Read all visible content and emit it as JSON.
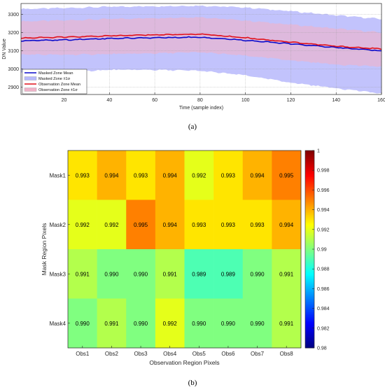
{
  "captions": {
    "a": "(a)",
    "b": "(b)"
  },
  "colors": {
    "masked_mean": "#0a0acb",
    "masked_band": "#b7b9fb",
    "obs_mean": "#e0101a",
    "obs_band": "#f0b3c8"
  },
  "chart_data": [
    {
      "type": "line",
      "title": "",
      "xlabel": "Time (sample index)",
      "ylabel": "DN Value",
      "xlim": [
        1,
        160
      ],
      "ylim": [
        2860,
        3360
      ],
      "xticks": [
        20,
        40,
        60,
        80,
        100,
        120,
        140,
        160
      ],
      "yticks": [
        2900,
        3000,
        3100,
        3200,
        3300
      ],
      "grid": true,
      "legend_position": "bottom-left",
      "x": [
        1,
        20,
        40,
        60,
        80,
        100,
        120,
        140,
        160
      ],
      "series": [
        {
          "name": "Masked Zone Mean",
          "kind": "line",
          "values": [
            3155,
            3160,
            3168,
            3172,
            3175,
            3158,
            3138,
            3118,
            3100
          ]
        },
        {
          "name": "Masked Zone ±1σ",
          "kind": "band",
          "lower": [
            2980,
            2985,
            2995,
            2995,
            2990,
            2965,
            2925,
            2895,
            2865
          ],
          "upper": [
            3330,
            3335,
            3342,
            3345,
            3348,
            3338,
            3318,
            3295,
            3275
          ]
        },
        {
          "name": "Observation Zone Mean",
          "kind": "line",
          "values": [
            3170,
            3175,
            3182,
            3188,
            3192,
            3172,
            3148,
            3125,
            3110
          ]
        },
        {
          "name": "Observation Zone ±1σ",
          "kind": "band",
          "lower": [
            3080,
            3078,
            3082,
            3086,
            3092,
            3073,
            3048,
            3025,
            3013
          ],
          "upper": [
            3262,
            3267,
            3275,
            3280,
            3285,
            3266,
            3244,
            3222,
            3200
          ]
        }
      ]
    },
    {
      "type": "heatmap",
      "title": "",
      "xlabel": "Observation Region Pixels",
      "ylabel": "Mask Region Pixels",
      "columns": [
        "Obs1",
        "Obs2",
        "Obs3",
        "Obs4",
        "Obs5",
        "Obs6",
        "Obs7",
        "Obs8"
      ],
      "rows": [
        "Mask1",
        "Mask2",
        "Mask3",
        "Mask4"
      ],
      "values": [
        [
          0.993,
          0.994,
          0.993,
          0.994,
          0.992,
          0.993,
          0.994,
          0.995
        ],
        [
          0.992,
          0.992,
          0.995,
          0.994,
          0.993,
          0.993,
          0.993,
          0.994
        ],
        [
          0.991,
          0.99,
          0.99,
          0.991,
          0.989,
          0.989,
          0.99,
          0.991
        ],
        [
          0.99,
          0.991,
          0.99,
          0.992,
          0.99,
          0.99,
          0.99,
          0.991
        ]
      ],
      "colorbar": {
        "min": 0.98,
        "max": 1,
        "ticks": [
          0.98,
          0.982,
          0.984,
          0.986,
          0.988,
          0.99,
          0.992,
          0.994,
          0.996,
          0.998,
          1
        ],
        "colormap": "jet"
      }
    }
  ]
}
